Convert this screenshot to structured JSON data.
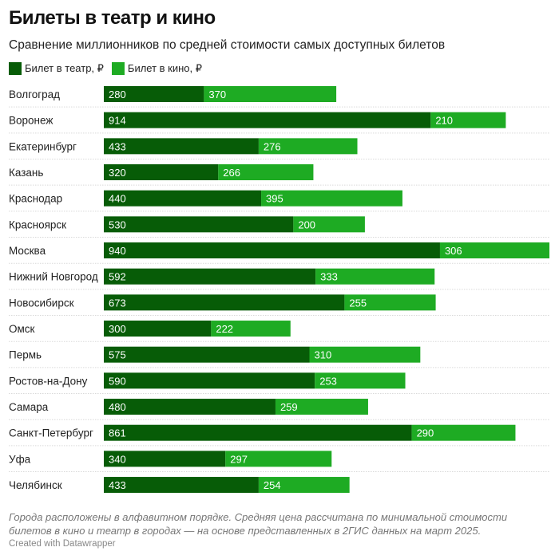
{
  "header": {
    "title": "Билеты в театр и кино",
    "subtitle": "Сравнение миллионников по средней стоимости самых доступных билетов"
  },
  "colors": {
    "theatre": "#075c07",
    "cinema": "#1eab23",
    "separator": "#d9d9d9"
  },
  "chart_data": {
    "type": "bar",
    "orientation": "horizontal",
    "stacked": true,
    "title": "Билеты в театр и кино",
    "subtitle": "Сравнение миллионников по средней стоимости самых доступных билетов",
    "legend_position": "top-left",
    "categories": [
      "Волгоград",
      "Воронеж",
      "Екатеринбург",
      "Казань",
      "Краснодар",
      "Красноярск",
      "Москва",
      "Нижний Новгород",
      "Новосибирск",
      "Омск",
      "Пермь",
      "Ростов-на-Дону",
      "Самара",
      "Санкт-Петербург",
      "Уфа",
      "Челябинск"
    ],
    "series": [
      {
        "name": "Билет в театр, ₽",
        "values": [
          280,
          914,
          433,
          320,
          440,
          530,
          940,
          592,
          673,
          300,
          575,
          590,
          480,
          861,
          340,
          433
        ]
      },
      {
        "name": "Билет в кино, ₽",
        "values": [
          370,
          210,
          276,
          266,
          395,
          200,
          306,
          333,
          255,
          222,
          310,
          253,
          259,
          290,
          297,
          254
        ]
      }
    ],
    "xlim": [
      0,
      1246
    ]
  },
  "footer": {
    "notes": "Города расположены в алфавитном порядке. Средняя цена рассчитана по минимальной стоимости билетов в кино и театр в городах — на основе представленных в 2ГИС данных на март 2025.",
    "credit": "Created with Datawrapper"
  }
}
